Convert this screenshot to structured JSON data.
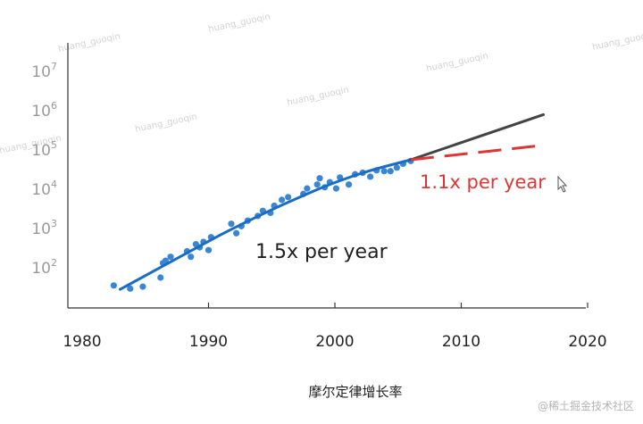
{
  "chart_data": {
    "type": "scatter",
    "xlabel": "",
    "ylabel": "",
    "xlim": [
      1978,
      2020
    ],
    "ylim": [
      1,
      7
    ],
    "y_scale": "log10",
    "x_ticks": [
      1980,
      1990,
      2000,
      2010,
      2020
    ],
    "y_ticks": [
      {
        "base": "10",
        "exp": "2",
        "value": 2
      },
      {
        "base": "10",
        "exp": "3",
        "value": 3
      },
      {
        "base": "10",
        "exp": "4",
        "value": 4
      },
      {
        "base": "10",
        "exp": "5",
        "value": 5
      },
      {
        "base": "10",
        "exp": "6",
        "value": 6
      },
      {
        "base": "10",
        "exp": "7",
        "value": 7
      }
    ],
    "points": [
      [
        1982.5,
        1.55
      ],
      [
        1983.8,
        1.47
      ],
      [
        1984.8,
        1.52
      ],
      [
        1986.2,
        1.75
      ],
      [
        1986.4,
        2.12
      ],
      [
        1986.6,
        2.18
      ],
      [
        1987.0,
        2.28
      ],
      [
        1988.3,
        2.42
      ],
      [
        1988.6,
        2.28
      ],
      [
        1989.0,
        2.6
      ],
      [
        1989.3,
        2.52
      ],
      [
        1989.6,
        2.66
      ],
      [
        1990.0,
        2.45
      ],
      [
        1990.2,
        2.78
      ],
      [
        1991.8,
        3.12
      ],
      [
        1992.2,
        2.88
      ],
      [
        1992.6,
        3.06
      ],
      [
        1993.1,
        3.2
      ],
      [
        1993.9,
        3.32
      ],
      [
        1994.3,
        3.45
      ],
      [
        1994.9,
        3.4
      ],
      [
        1995.2,
        3.58
      ],
      [
        1995.8,
        3.73
      ],
      [
        1996.3,
        3.8
      ],
      [
        1997.5,
        3.88
      ],
      [
        1997.8,
        4.02
      ],
      [
        1998.6,
        4.12
      ],
      [
        1998.8,
        4.28
      ],
      [
        1999.2,
        4.05
      ],
      [
        1999.6,
        4.18
      ],
      [
        2000.1,
        4.02
      ],
      [
        2000.4,
        4.3
      ],
      [
        2001.1,
        4.12
      ],
      [
        2001.6,
        4.38
      ],
      [
        2002.2,
        4.42
      ],
      [
        2002.8,
        4.32
      ],
      [
        2003.3,
        4.48
      ],
      [
        2003.9,
        4.46
      ],
      [
        2004.4,
        4.46
      ],
      [
        2004.9,
        4.55
      ],
      [
        2005.4,
        4.65
      ],
      [
        2006.0,
        4.72
      ]
    ],
    "fit_curve": [
      [
        1983.0,
        1.45
      ],
      [
        1985.0,
        1.8
      ],
      [
        1987.0,
        2.15
      ],
      [
        1989.0,
        2.5
      ],
      [
        1991.0,
        2.85
      ],
      [
        1993.0,
        3.17
      ],
      [
        1995.0,
        3.48
      ],
      [
        1997.0,
        3.77
      ],
      [
        1999.0,
        4.05
      ],
      [
        2001.0,
        4.29
      ],
      [
        2003.0,
        4.5
      ],
      [
        2006.0,
        4.75
      ]
    ],
    "trend_15": [
      [
        2006.0,
        4.75
      ],
      [
        2016.5,
        5.9
      ]
    ],
    "trend_11": [
      [
        2006.0,
        4.75
      ],
      [
        2016.5,
        5.12
      ]
    ],
    "annotations": {
      "growth_15": "1.5x per year",
      "growth_11": "1.1x per year"
    },
    "colors": {
      "points": "#3a86d4",
      "fit": "#1a6cc4",
      "trend_15": "#444444",
      "trend_11": "#e03535"
    }
  },
  "caption": "摩尔定律增长率",
  "watermarks": [
    "huang_guoqin",
    "huang_guoqin",
    "huang_guoqin",
    "huang_guoqin",
    "huang_guoqin",
    "huang_guoqin",
    "huang_guoqin"
  ],
  "site_credit": "@稀土掘金技术社区"
}
